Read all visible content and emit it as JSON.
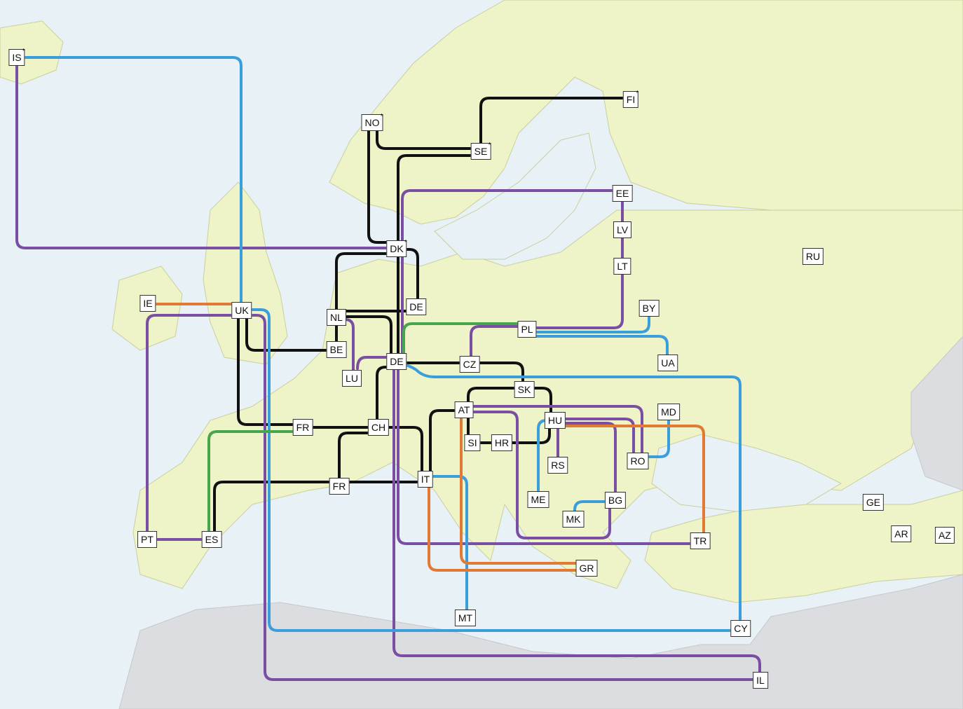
{
  "colors": {
    "sea": "#e8f1f6",
    "land": "#eef3c8",
    "land_other": "#dcdde0",
    "border": "#b9c08f",
    "black": "#111111",
    "purple": "#7a4fa3",
    "blue": "#3a9edb",
    "orange": "#e07a34",
    "green": "#45a64e"
  },
  "nodes": [
    {
      "id": "IS",
      "label": "IS",
      "star": "*"
    },
    {
      "id": "FI",
      "label": "FI",
      "star": "*"
    },
    {
      "id": "NO",
      "label": "NO",
      "star": "*"
    },
    {
      "id": "SE",
      "label": "SE",
      "star": "*"
    },
    {
      "id": "EE",
      "label": "EE",
      "star": ""
    },
    {
      "id": "LV",
      "label": "LV",
      "star": ""
    },
    {
      "id": "LT",
      "label": "LT",
      "star": ""
    },
    {
      "id": "RU",
      "label": "RU",
      "star": ""
    },
    {
      "id": "DK",
      "label": "DK",
      "star": "*"
    },
    {
      "id": "DE1",
      "label": "DE",
      "star": ""
    },
    {
      "id": "IE",
      "label": "IE",
      "star": ""
    },
    {
      "id": "UK",
      "label": "UK",
      "star": ""
    },
    {
      "id": "NL",
      "label": "NL",
      "star": ""
    },
    {
      "id": "BY",
      "label": "BY",
      "star": ""
    },
    {
      "id": "PL",
      "label": "PL",
      "star": ""
    },
    {
      "id": "BE",
      "label": "BE",
      "star": ""
    },
    {
      "id": "LU",
      "label": "LU",
      "star": ""
    },
    {
      "id": "DE2",
      "label": "DE",
      "star": ""
    },
    {
      "id": "CZ",
      "label": "CZ",
      "star": ""
    },
    {
      "id": "UA",
      "label": "UA",
      "star": ""
    },
    {
      "id": "SK",
      "label": "SK",
      "star": ""
    },
    {
      "id": "AT",
      "label": "AT",
      "star": ""
    },
    {
      "id": "MD",
      "label": "MD",
      "star": ""
    },
    {
      "id": "HU",
      "label": "HU",
      "star": ""
    },
    {
      "id": "FR1",
      "label": "FR",
      "star": ""
    },
    {
      "id": "CH",
      "label": "CH",
      "star": ""
    },
    {
      "id": "SI",
      "label": "SI",
      "star": ""
    },
    {
      "id": "HR",
      "label": "HR",
      "star": ""
    },
    {
      "id": "RO",
      "label": "RO",
      "star": ""
    },
    {
      "id": "RS",
      "label": "RS",
      "star": ""
    },
    {
      "id": "IT",
      "label": "IT",
      "star": ""
    },
    {
      "id": "FR2",
      "label": "FR",
      "star": ""
    },
    {
      "id": "ME",
      "label": "ME",
      "star": ""
    },
    {
      "id": "BG",
      "label": "BG",
      "star": ""
    },
    {
      "id": "GE",
      "label": "GE",
      "star": ""
    },
    {
      "id": "MK",
      "label": "MK",
      "star": ""
    },
    {
      "id": "AR",
      "label": "AR",
      "star": ""
    },
    {
      "id": "AZ",
      "label": "AZ",
      "star": ""
    },
    {
      "id": "PT",
      "label": "PT",
      "star": ""
    },
    {
      "id": "ES",
      "label": "ES",
      "star": ""
    },
    {
      "id": "TR",
      "label": "TR",
      "star": ""
    },
    {
      "id": "GR",
      "label": "GR",
      "star": ""
    },
    {
      "id": "MT",
      "label": "MT",
      "star": ""
    },
    {
      "id": "CY",
      "label": "CY",
      "star": ""
    },
    {
      "id": "IL",
      "label": "IL",
      "star": ""
    }
  ]
}
